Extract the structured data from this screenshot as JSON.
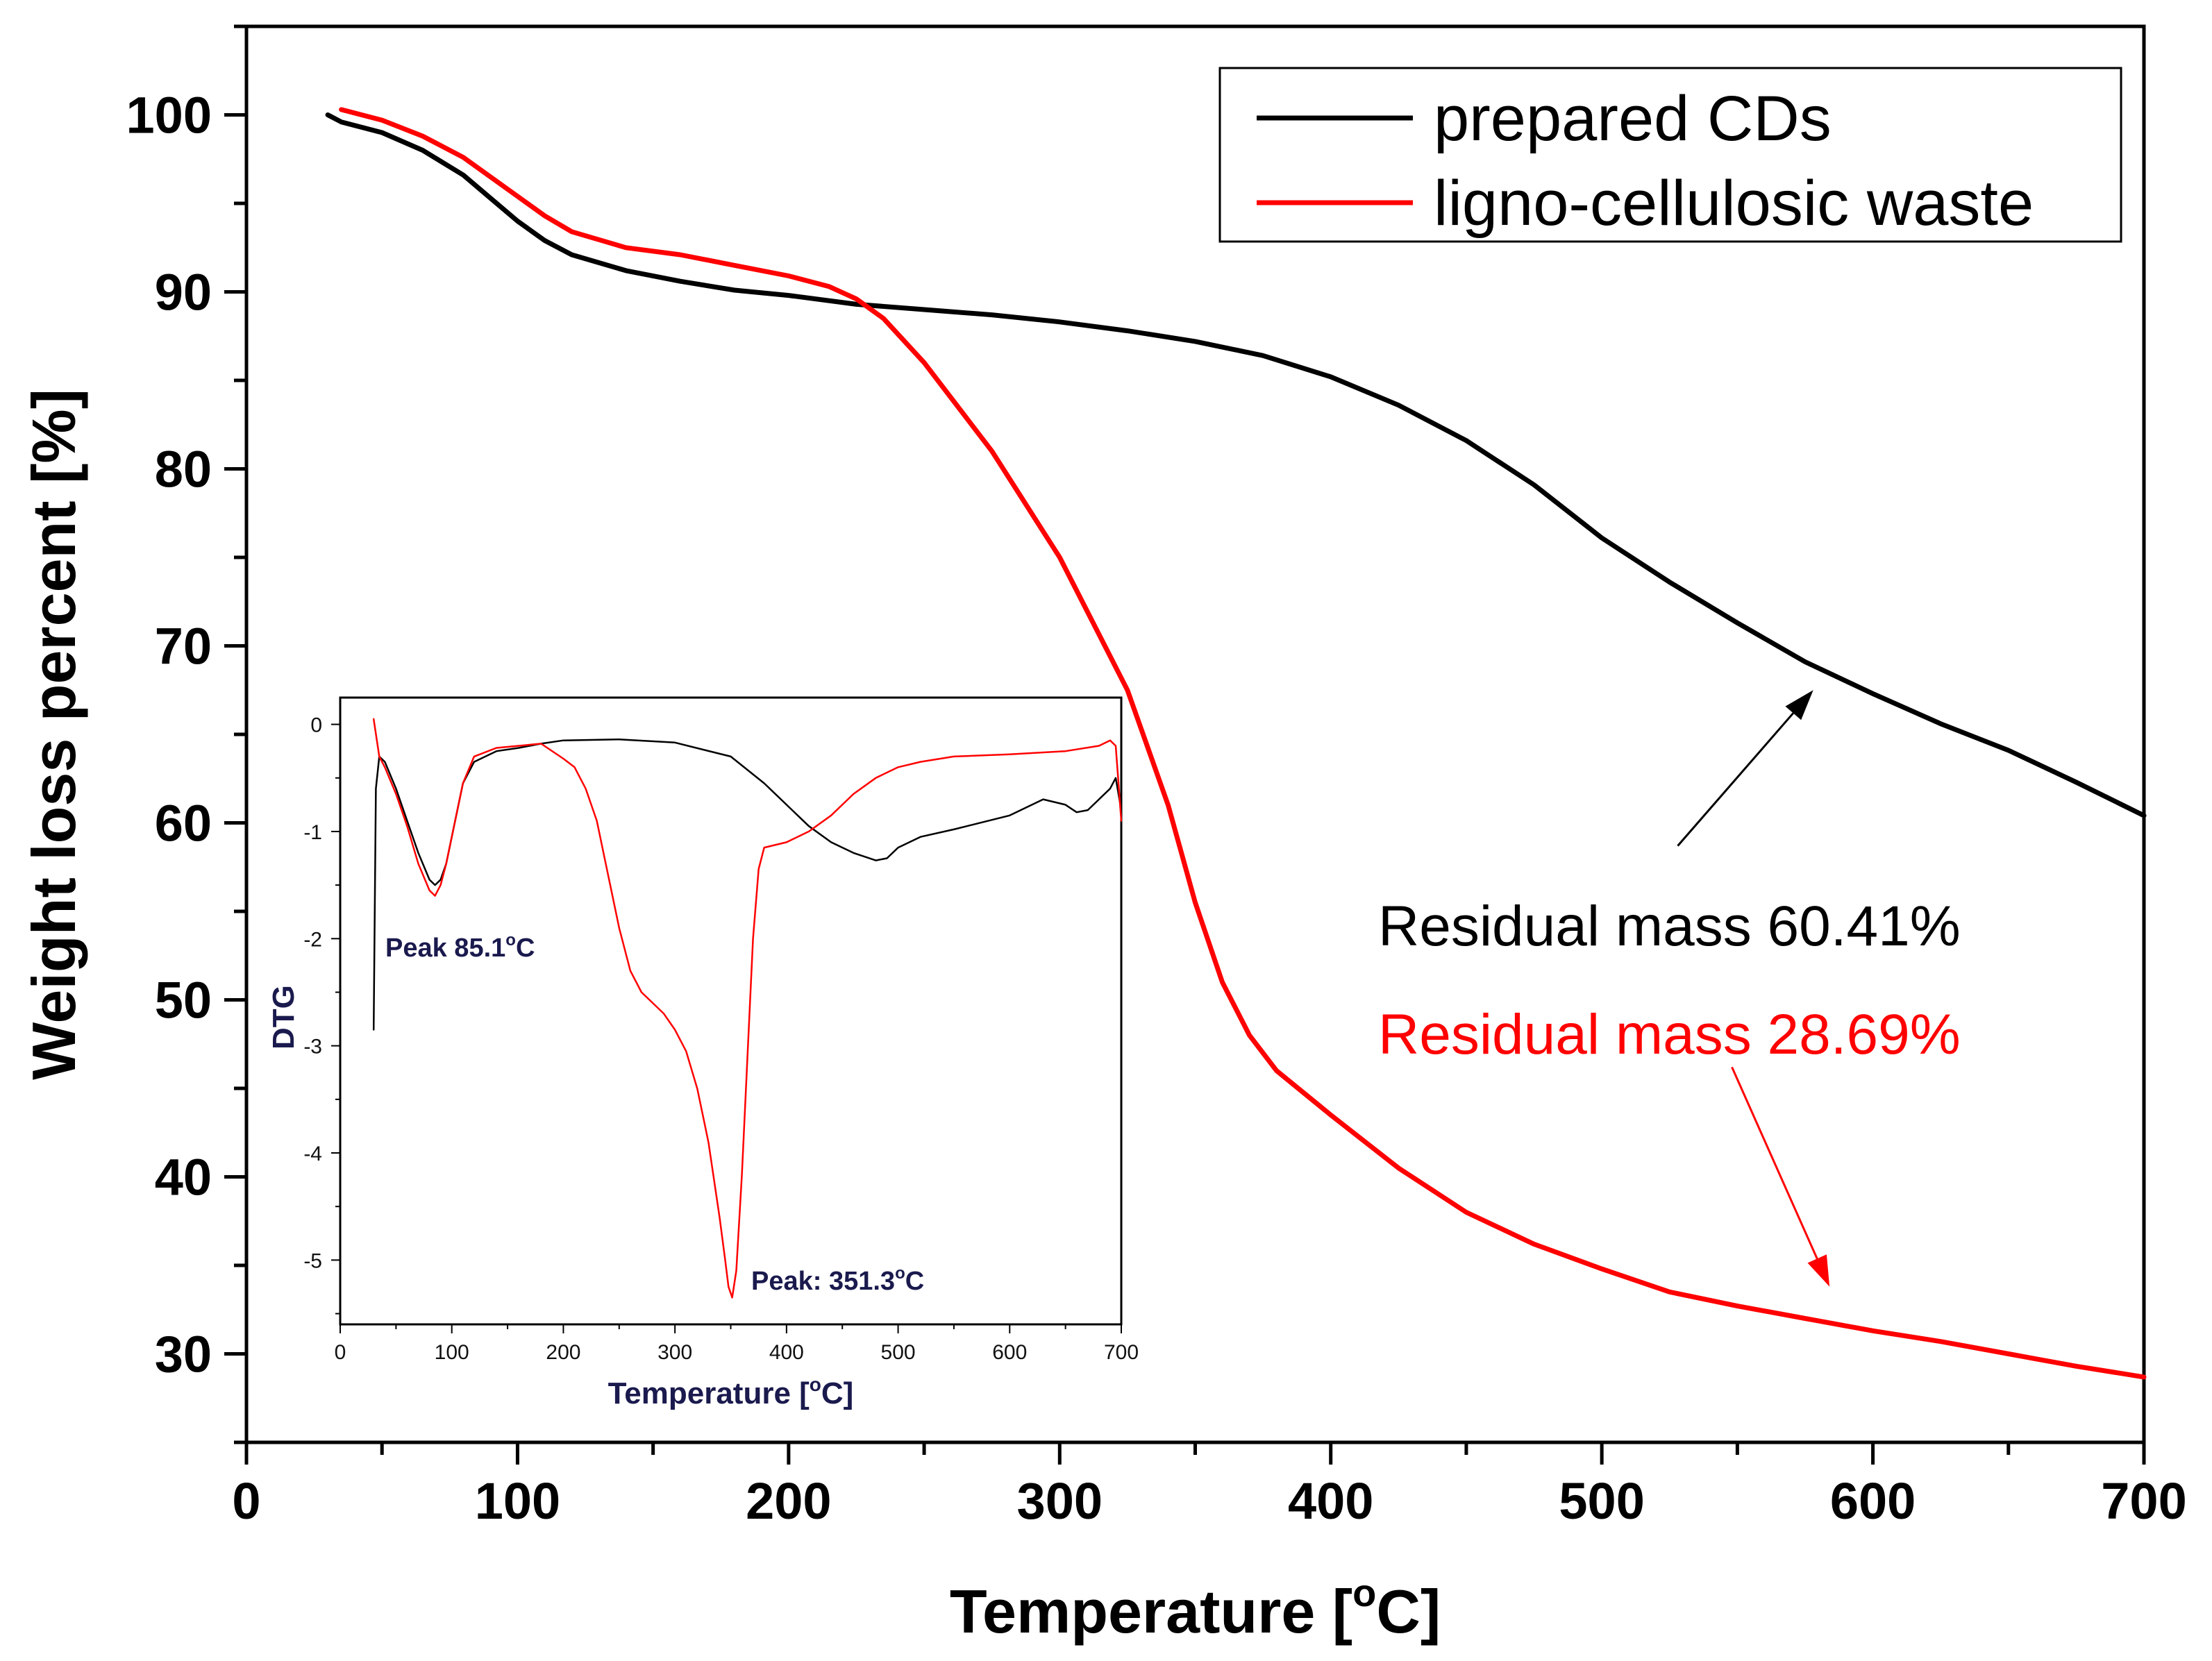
{
  "chart_data": [
    {
      "type": "line",
      "title": "",
      "xlabel": "Temperature [°C]",
      "xlabel_parts": {
        "main": "Temperature [",
        "sup": "o",
        "tail": "C]"
      },
      "ylabel": "Weight loss percent [%]",
      "xlim": [
        0,
        700
      ],
      "ylim": [
        25,
        105
      ],
      "xticks": [
        0,
        100,
        200,
        300,
        400,
        500,
        600,
        700
      ],
      "yticks": [
        30,
        40,
        50,
        60,
        70,
        80,
        90,
        100
      ],
      "xtick_labels": [
        "0",
        "100",
        "200",
        "300",
        "400",
        "500",
        "600",
        "700"
      ],
      "ytick_labels": [
        "30",
        "40",
        "50",
        "60",
        "70",
        "80",
        "90",
        "100"
      ],
      "grid": false,
      "legend_position": "top-right",
      "series": [
        {
          "name": "prepared CDs",
          "color": "#000000",
          "x": [
            30,
            35,
            50,
            65,
            80,
            90,
            100,
            110,
            120,
            140,
            160,
            180,
            200,
            225,
            250,
            275,
            300,
            325,
            350,
            375,
            400,
            425,
            450,
            475,
            500,
            525,
            550,
            575,
            600,
            625,
            650,
            675,
            700
          ],
          "y": [
            100,
            99.6,
            99.0,
            98.0,
            96.6,
            95.3,
            94.0,
            92.9,
            92.1,
            91.2,
            90.6,
            90.1,
            89.8,
            89.3,
            89.0,
            88.7,
            88.3,
            87.8,
            87.2,
            86.4,
            85.2,
            83.6,
            81.6,
            79.1,
            76.1,
            73.6,
            71.3,
            69.1,
            67.3,
            65.6,
            64.1,
            62.3,
            60.41
          ]
        },
        {
          "name": "ligno-cellulosic waste",
          "color": "#ff0000",
          "x": [
            35,
            50,
            65,
            80,
            90,
            100,
            110,
            120,
            140,
            160,
            180,
            200,
            215,
            225,
            235,
            250,
            275,
            300,
            325,
            340,
            350,
            360,
            370,
            380,
            400,
            425,
            450,
            475,
            500,
            525,
            550,
            575,
            600,
            625,
            650,
            675,
            700
          ],
          "y": [
            100.3,
            99.7,
            98.8,
            97.6,
            96.5,
            95.4,
            94.3,
            93.4,
            92.5,
            92.1,
            91.5,
            90.9,
            90.3,
            89.6,
            88.5,
            86.0,
            81.0,
            75.0,
            67.5,
            61.0,
            55.5,
            51.0,
            48.0,
            46.0,
            43.5,
            40.5,
            38.0,
            36.2,
            34.8,
            33.5,
            32.7,
            32.0,
            31.3,
            30.7,
            30.0,
            29.3,
            28.69
          ]
        }
      ],
      "annotations": [
        {
          "text": "Residual mass 60.41%",
          "color": "#000000",
          "arrow": {
            "from": [
              528,
              58.7
            ],
            "to": [
              578,
              67.5
            ]
          }
        },
        {
          "text": "Residual mass 28.69%",
          "color": "#ff0000",
          "arrow": {
            "from": [
              548,
              46.2
            ],
            "to": [
              584,
              33.8
            ]
          }
        }
      ]
    },
    {
      "type": "line",
      "title": "",
      "xlabel": "Temperature [°C]",
      "xlabel_parts": {
        "main": "Temperature [",
        "sup": "o",
        "tail": "C]"
      },
      "ylabel": "DTG",
      "xlim": [
        0,
        700
      ],
      "ylim": [
        -5.6,
        0.25
      ],
      "xticks": [
        0,
        100,
        200,
        300,
        400,
        500,
        600,
        700
      ],
      "yticks": [
        0,
        -1,
        -2,
        -3,
        -4,
        -5
      ],
      "xtick_labels": [
        "0",
        "100",
        "200",
        "300",
        "400",
        "500",
        "600",
        "700"
      ],
      "ytick_labels": [
        "0",
        "-1",
        "-2",
        "-3",
        "-4",
        "-5"
      ],
      "grid": false,
      "series": [
        {
          "name": "prepared CDs",
          "color": "#000000",
          "x": [
            30,
            32,
            35,
            40,
            50,
            60,
            70,
            80,
            85,
            90,
            95,
            100,
            110,
            120,
            140,
            160,
            180,
            200,
            250,
            300,
            350,
            380,
            400,
            420,
            440,
            460,
            480,
            490,
            500,
            520,
            550,
            600,
            630,
            650,
            660,
            670,
            680,
            690,
            695,
            700
          ],
          "y": [
            -2.85,
            -0.6,
            -0.3,
            -0.35,
            -0.6,
            -0.9,
            -1.2,
            -1.45,
            -1.5,
            -1.45,
            -1.3,
            -1.05,
            -0.55,
            -0.35,
            -0.25,
            -0.22,
            -0.18,
            -0.15,
            -0.14,
            -0.17,
            -0.3,
            -0.55,
            -0.75,
            -0.95,
            -1.1,
            -1.2,
            -1.27,
            -1.25,
            -1.15,
            -1.05,
            -0.98,
            -0.85,
            -0.7,
            -0.75,
            -0.82,
            -0.8,
            -0.7,
            -0.6,
            -0.5,
            -0.8
          ]
        },
        {
          "name": "ligno-cellulosic waste",
          "color": "#ff0000",
          "x": [
            30,
            35,
            40,
            50,
            60,
            70,
            80,
            85,
            90,
            95,
            100,
            110,
            120,
            140,
            160,
            180,
            200,
            210,
            220,
            230,
            240,
            250,
            260,
            270,
            280,
            290,
            300,
            310,
            320,
            330,
            340,
            345,
            348,
            351.3,
            355,
            360,
            365,
            370,
            375,
            380,
            400,
            420,
            440,
            460,
            480,
            500,
            520,
            550,
            600,
            650,
            680,
            690,
            695,
            700
          ],
          "y": [
            0.05,
            -0.3,
            -0.4,
            -0.65,
            -0.95,
            -1.3,
            -1.55,
            -1.6,
            -1.5,
            -1.3,
            -1.05,
            -0.55,
            -0.3,
            -0.22,
            -0.2,
            -0.18,
            -0.32,
            -0.4,
            -0.6,
            -0.9,
            -1.4,
            -1.9,
            -2.3,
            -2.5,
            -2.6,
            -2.7,
            -2.85,
            -3.05,
            -3.4,
            -3.9,
            -4.6,
            -5.0,
            -5.25,
            -5.35,
            -5.1,
            -4.2,
            -3.1,
            -2.0,
            -1.35,
            -1.15,
            -1.1,
            -1.0,
            -0.85,
            -0.65,
            -0.5,
            -0.4,
            -0.35,
            -0.3,
            -0.28,
            -0.25,
            -0.2,
            -0.15,
            -0.2,
            -0.9
          ]
        }
      ],
      "annotations": [
        {
          "text": "Peak 85.1",
          "sup": "o",
          "tail": "C"
        },
        {
          "text": "Peak: 351.3",
          "sup": "o",
          "tail": "C"
        }
      ]
    }
  ]
}
